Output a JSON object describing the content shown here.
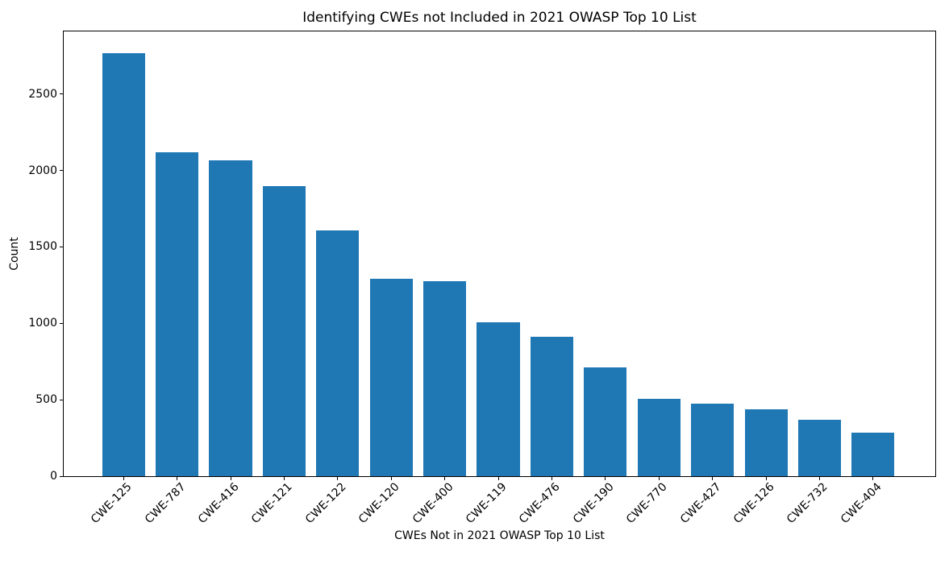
{
  "chart_data": {
    "type": "bar",
    "title": "Identifying CWEs not Included in 2021 OWASP Top 10 List",
    "xlabel": "CWEs Not in 2021 OWASP Top 10 List",
    "ylabel": "Count",
    "categories": [
      "CWE-125",
      "CWE-787",
      "CWE-416",
      "CWE-121",
      "CWE-122",
      "CWE-120",
      "CWE-400",
      "CWE-119",
      "CWE-476",
      "CWE-190",
      "CWE-770",
      "CWE-427",
      "CWE-126",
      "CWE-732",
      "CWE-404"
    ],
    "values": [
      2770,
      2120,
      2065,
      1900,
      1610,
      1290,
      1278,
      1008,
      910,
      710,
      508,
      473,
      440,
      368,
      285
    ],
    "ylim": [
      0,
      2910
    ],
    "yticks": [
      0,
      500,
      1000,
      1500,
      2000,
      2500
    ],
    "bar_color": "#1f77b4",
    "bar_width_fraction": 0.8,
    "grid": false,
    "legend": false,
    "x_tick_rotation_deg": 45
  }
}
